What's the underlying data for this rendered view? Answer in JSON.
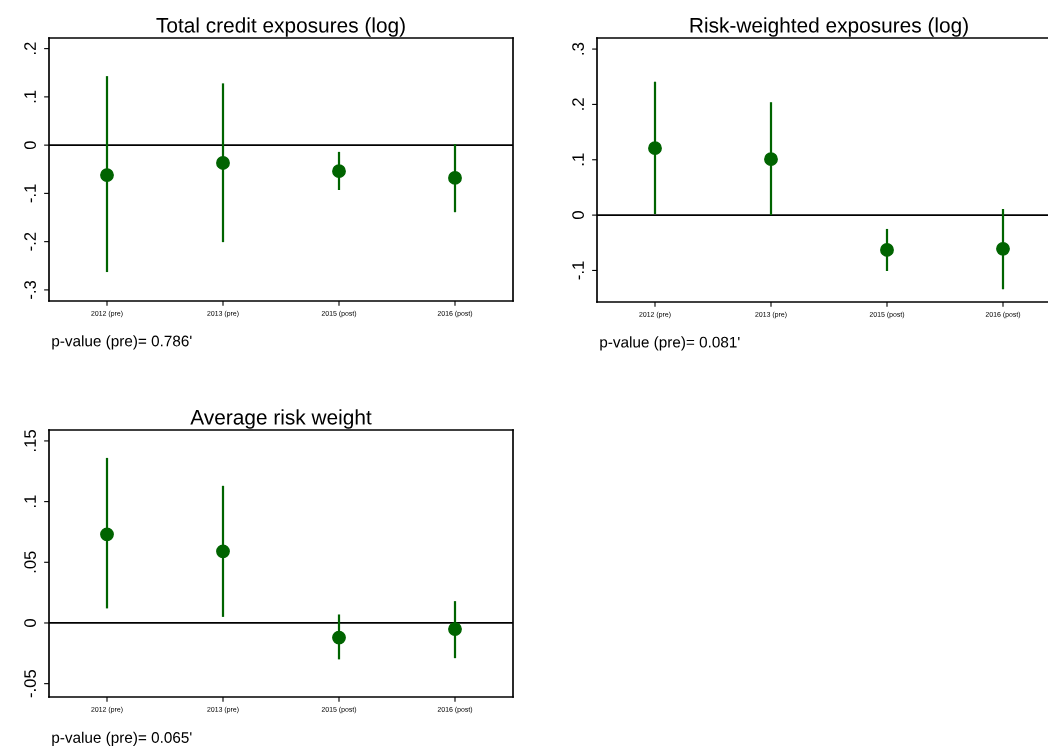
{
  "chart_data": [
    {
      "type": "scatter",
      "title": "Total credit exposures (log)",
      "categories": [
        "2012 (pre)",
        "2013 (pre)",
        "2015 (post)",
        "2016 (post)"
      ],
      "series": [
        {
          "color": "#006400",
          "values": [
            -0.062,
            -0.037,
            -0.054,
            -0.068
          ],
          "errors": [
            [
              -0.263,
              0.143
            ],
            [
              -0.201,
              0.128
            ],
            [
              -0.093,
              -0.014
            ],
            [
              -0.139,
              0.002
            ]
          ]
        }
      ],
      "marker": "circle",
      "ylim": [
        -0.323,
        0.222
      ],
      "yticks": [
        {
          "value": -0.3,
          "label": "-.3"
        },
        {
          "value": -0.2,
          "label": "-.2"
        },
        {
          "value": -0.1,
          "label": "-.1"
        },
        0,
        {
          "value": 0.1,
          "label": ".1"
        },
        {
          "value": 0.2,
          "label": ".2"
        }
      ],
      "ref_lines": [
        {
          "axis": "y",
          "value": 0,
          "color": "#000000"
        }
      ],
      "annotations": [
        "p-value (pre)= 0.786'"
      ],
      "grid": false
    },
    {
      "type": "scatter",
      "title": "Risk-weighted exposures (log)",
      "categories": [
        "2012 (pre)",
        "2013 (pre)",
        "2015 (post)",
        "2016 (post)"
      ],
      "series": [
        {
          "color": "#006400",
          "values": [
            0.121,
            0.101,
            -0.063,
            -0.061
          ],
          "errors": [
            [
              0.002,
              0.241
            ],
            [
              0.0,
              0.204
            ],
            [
              -0.101,
              -0.025
            ],
            [
              -0.134,
              0.011
            ]
          ]
        }
      ],
      "marker": "circle",
      "ylim": [
        -0.157,
        0.32
      ],
      "yticks": [
        {
          "value": -0.1,
          "label": "-.1"
        },
        0,
        {
          "value": 0.1,
          "label": ".1"
        },
        {
          "value": 0.2,
          "label": ".2"
        },
        {
          "value": 0.3,
          "label": ".3"
        }
      ],
      "ref_lines": [
        {
          "axis": "y",
          "value": 0,
          "color": "#000000"
        }
      ],
      "annotations": [
        "p-value (pre)= 0.081'"
      ],
      "grid": false
    },
    {
      "type": "scatter",
      "title": "Average risk weight",
      "categories": [
        "2012 (pre)",
        "2013 (pre)",
        "2015 (post)",
        "2016 (post)"
      ],
      "series": [
        {
          "color": "#006400",
          "values": [
            0.073,
            0.059,
            -0.012,
            -0.005
          ],
          "errors": [
            [
              0.012,
              0.136
            ],
            [
              0.005,
              0.113
            ],
            [
              -0.03,
              0.007
            ],
            [
              -0.029,
              0.018
            ]
          ]
        }
      ],
      "marker": "circle",
      "ylim": [
        -0.061,
        0.159
      ],
      "yticks": [
        {
          "value": -0.05,
          "label": "-.05"
        },
        0,
        {
          "value": 0.05,
          "label": ".05"
        },
        {
          "value": 0.1,
          "label": ".1"
        },
        {
          "value": 0.15,
          "label": ".15"
        }
      ],
      "ref_lines": [
        {
          "axis": "y",
          "value": 0,
          "color": "#000000"
        }
      ],
      "annotations": [
        "p-value (pre)= 0.065'"
      ],
      "grid": false
    }
  ]
}
